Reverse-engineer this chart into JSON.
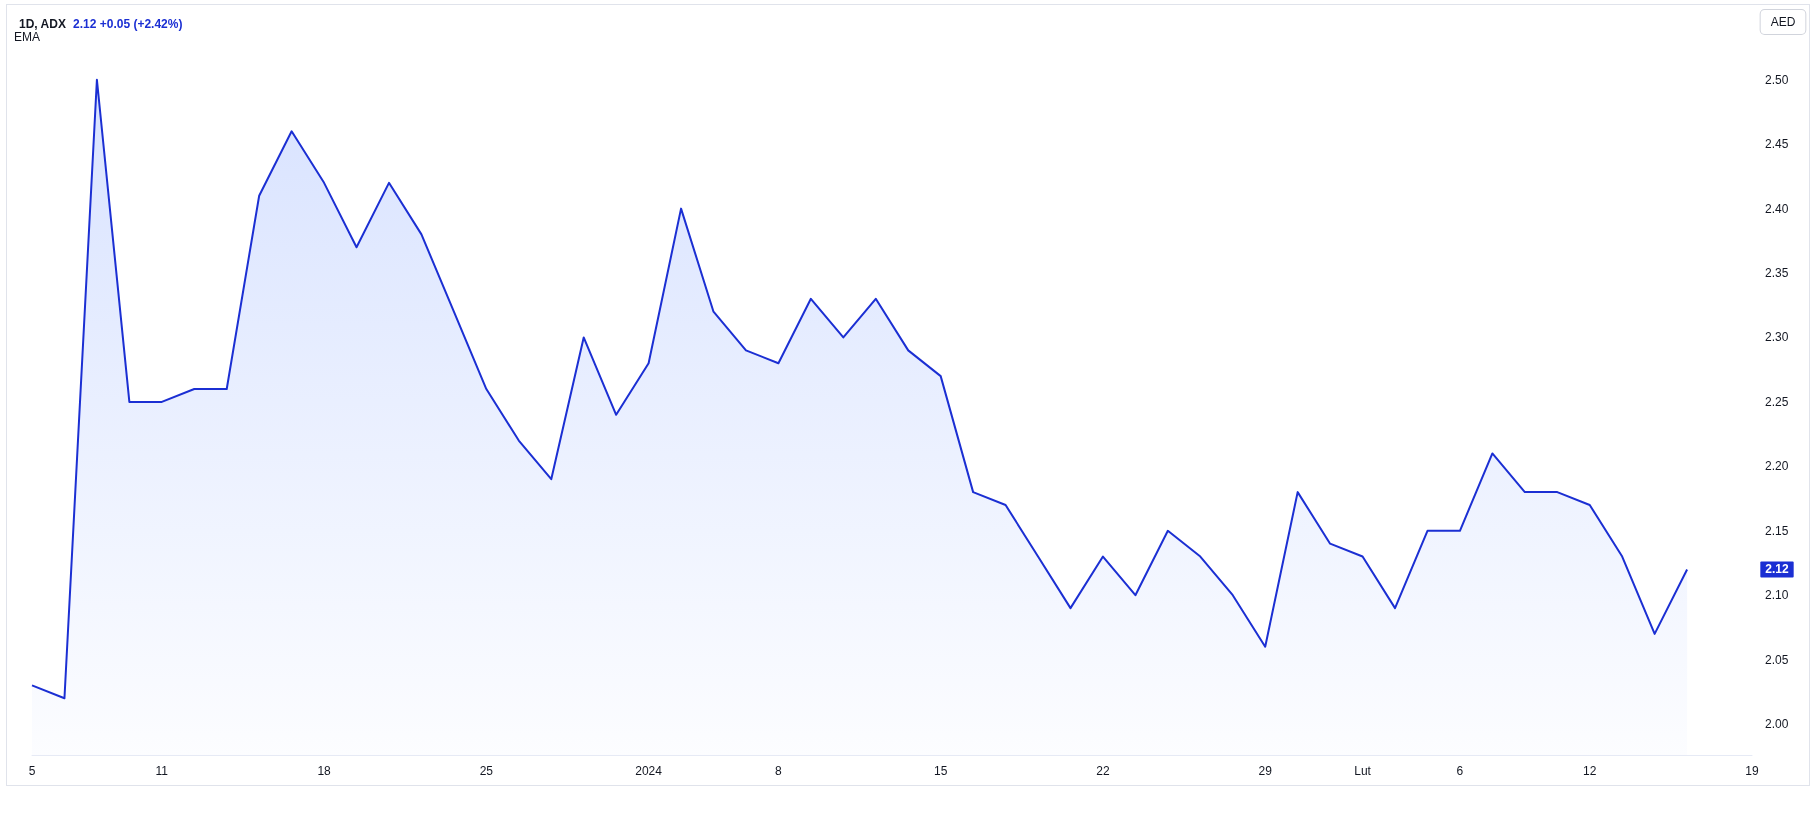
{
  "chart_data": {
    "type": "area",
    "title": "1D, ADX",
    "subtitle": "2.12 +0.05 (+2.42%)",
    "ylabel": "AED",
    "annotations": [
      "EMA",
      "2.12"
    ],
    "categories": [
      "5",
      null,
      null,
      null,
      "11",
      null,
      null,
      null,
      null,
      "18",
      null,
      null,
      null,
      null,
      "25",
      null,
      null,
      null,
      null,
      "2024",
      null,
      null,
      null,
      "8",
      null,
      null,
      null,
      null,
      "15",
      null,
      null,
      null,
      null,
      "22",
      null,
      null,
      null,
      null,
      "29",
      null,
      null,
      "Lut",
      null,
      null,
      "6",
      null,
      null,
      null,
      "12",
      null,
      null,
      null,
      null,
      "19"
    ],
    "series": [
      {
        "color": "#1b2fd3",
        "values": [
          2.03,
          2.02,
          2.5,
          2.25,
          2.25,
          2.26,
          2.26,
          2.41,
          2.46,
          2.42,
          2.37,
          2.42,
          2.38,
          2.32,
          2.26,
          2.22,
          2.19,
          2.3,
          2.24,
          2.28,
          2.4,
          2.32,
          2.29,
          2.28,
          2.33,
          2.3,
          2.33,
          2.29,
          2.27,
          2.18,
          2.17,
          2.13,
          2.09,
          2.13,
          2.1,
          2.15,
          2.13,
          2.1,
          2.06,
          2.18,
          2.14,
          2.13,
          2.09,
          2.15,
          2.15,
          2.21,
          2.18,
          2.18,
          2.17,
          2.13,
          2.07,
          2.12,
          null,
          null
        ]
      }
    ],
    "ylim": [
      1.976,
      2.558
    ],
    "yticks": [
      {
        "value": 2.0,
        "label": "2.00"
      },
      2.05,
      {
        "value": 2.1,
        "label": "2.10"
      },
      2.15,
      {
        "value": 2.2,
        "label": "2.20"
      },
      2.25,
      {
        "value": 2.3,
        "label": "2.30"
      },
      2.35,
      {
        "value": 2.4,
        "label": "2.40"
      },
      2.45,
      {
        "value": 2.5,
        "label": "2.50"
      }
    ],
    "grid": false,
    "marker": "none"
  }
}
